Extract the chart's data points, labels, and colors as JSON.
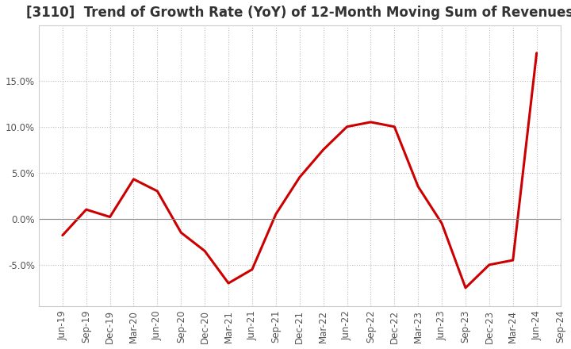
{
  "title": "[3110]  Trend of Growth Rate (YoY) of 12-Month Moving Sum of Revenues",
  "line_color": "#cc0000",
  "background_color": "#ffffff",
  "grid_color": "#bbbbbb",
  "zero_line_color": "#888888",
  "x_labels": [
    "Jun-19",
    "Sep-19",
    "Dec-19",
    "Mar-20",
    "Jun-20",
    "Sep-20",
    "Dec-20",
    "Mar-21",
    "Jun-21",
    "Sep-21",
    "Dec-21",
    "Mar-22",
    "Jun-22",
    "Sep-22",
    "Dec-22",
    "Mar-23",
    "Jun-23",
    "Sep-23",
    "Dec-23",
    "Mar-24",
    "Jun-24",
    "Sep-24"
  ],
  "y_values": [
    -1.8,
    1.0,
    0.2,
    4.3,
    3.0,
    -1.5,
    -3.5,
    -7.0,
    -5.5,
    0.5,
    4.5,
    7.5,
    10.0,
    10.5,
    10.0,
    3.5,
    -0.5,
    -7.5,
    -5.0,
    -4.5,
    18.0,
    null
  ],
  "ylim": [
    -9.5,
    21
  ],
  "yticks": [
    -5.0,
    0.0,
    5.0,
    10.0,
    15.0
  ],
  "title_fontsize": 12,
  "tick_fontsize": 8.5,
  "line_width": 2.2
}
